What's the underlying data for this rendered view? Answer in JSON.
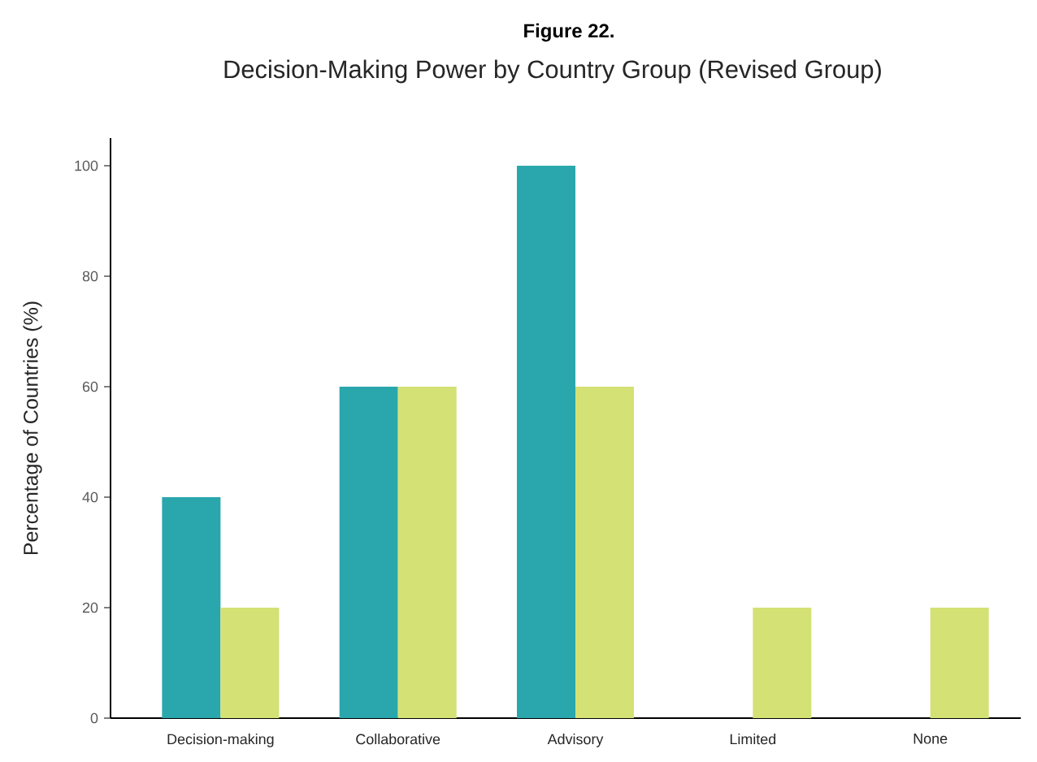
{
  "chart_data": {
    "type": "bar",
    "title": "Figure 22.",
    "subtitle": "Decision-Making Power by Country Group (Revised Group)",
    "ylabel": "Percentage of Countries (%)",
    "categories": [
      "Decision-making",
      "Collaborative",
      "Advisory",
      "Limited",
      "None"
    ],
    "series": [
      {
        "color": "#2aa6ad",
        "values": [
          40,
          60,
          100,
          0,
          0
        ]
      },
      {
        "color": "#d4e174",
        "values": [
          20,
          60,
          60,
          20,
          20
        ]
      }
    ],
    "ylim": [
      0,
      105
    ],
    "yticks": [
      0,
      20,
      40,
      60,
      80,
      100
    ],
    "grid": false
  }
}
